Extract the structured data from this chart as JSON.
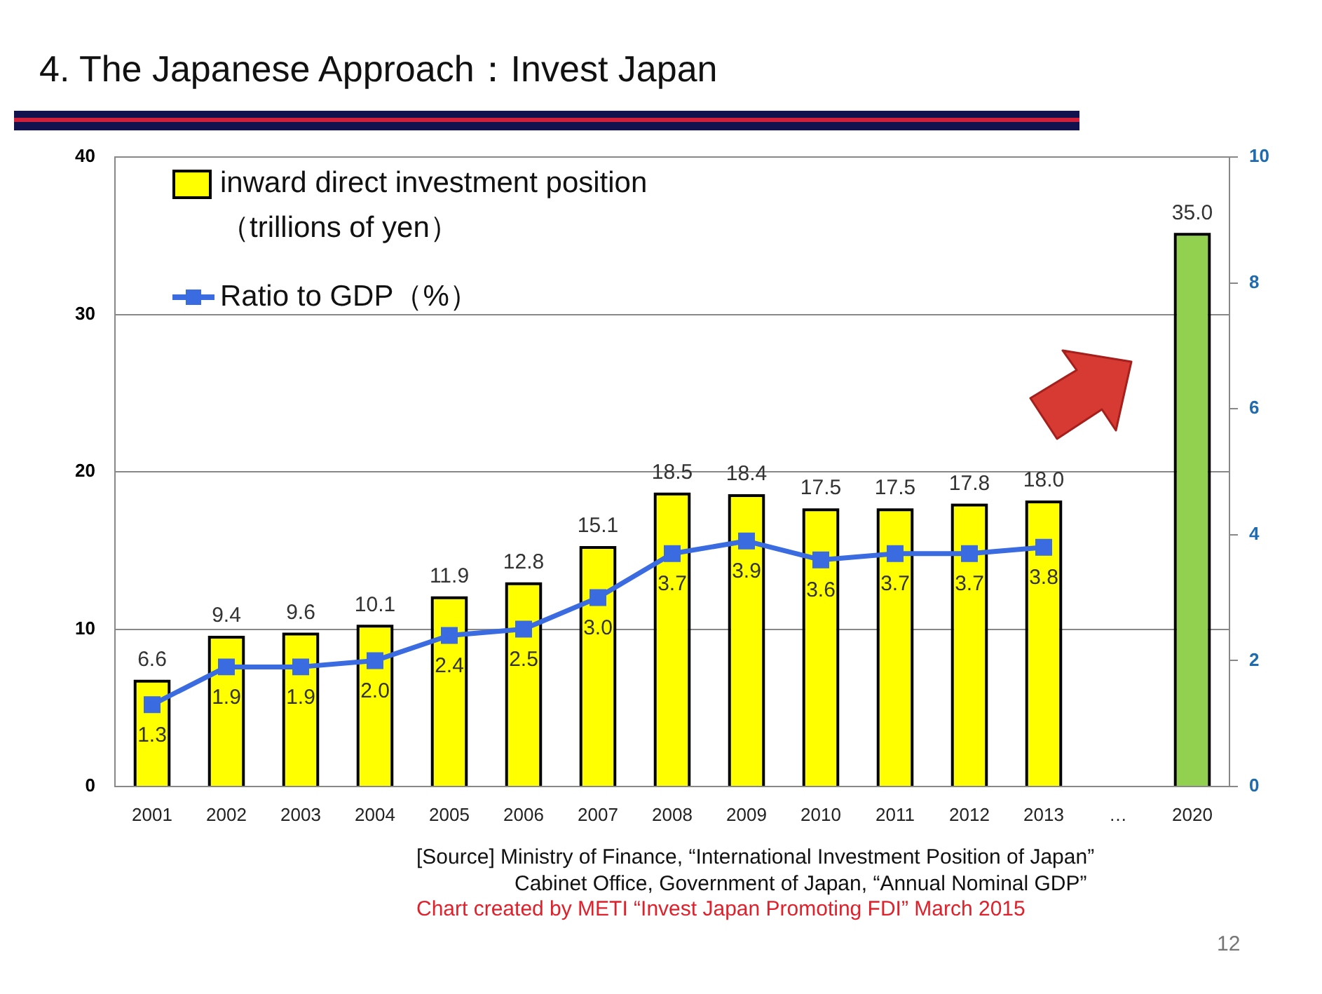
{
  "chart_data": {
    "type": "bar",
    "title": "4. The Japanese Approach：Invest Japan",
    "categories": [
      "2001",
      "2002",
      "2003",
      "2004",
      "2005",
      "2006",
      "2007",
      "2008",
      "2009",
      "2010",
      "2011",
      "2012",
      "2013",
      "…",
      "2020"
    ],
    "series": [
      {
        "name": "inward direct investment position\n（trillions of yen）",
        "colors": [
          "#ffff00",
          "#ffff00",
          "#ffff00",
          "#ffff00",
          "#ffff00",
          "#ffff00",
          "#ffff00",
          "#ffff00",
          "#ffff00",
          "#ffff00",
          "#ffff00",
          "#ffff00",
          "#ffff00",
          "#ffff00",
          "#92d050"
        ],
        "values": [
          6.6,
          9.4,
          9.6,
          10.1,
          11.9,
          12.8,
          15.1,
          18.5,
          18.4,
          17.5,
          17.5,
          17.8,
          18.0,
          null,
          35.0
        ],
        "value_labels": [
          "6.6",
          "9.4",
          "9.6",
          "10.1",
          "11.9",
          "12.8",
          "15.1",
          "18.5",
          "18.4",
          "17.5",
          "17.5",
          "17.8",
          "18.0",
          null,
          "35.0"
        ]
      },
      {
        "name": "Ratio to GDP（%）",
        "type": "line",
        "axis": "y2",
        "color": "#3a6be0",
        "values": [
          1.3,
          1.9,
          1.9,
          2.0,
          2.4,
          2.5,
          3.0,
          3.7,
          3.9,
          3.6,
          3.7,
          3.7,
          3.8,
          null,
          null
        ],
        "value_labels": [
          "1.3",
          "1.9",
          "1.9",
          "2.0",
          "2.4",
          "2.5",
          "3.0",
          "3.7",
          "3.9",
          "3.6",
          "3.7",
          "3.7",
          "3.8",
          null,
          null
        ]
      }
    ],
    "ylim": [
      0,
      40
    ],
    "yticks": [
      0,
      10,
      20,
      30,
      40
    ],
    "y2lim": [
      0,
      10
    ],
    "y2ticks": [
      0,
      2,
      4,
      6,
      8,
      10
    ],
    "grid": "y",
    "legend": "top left",
    "marker": "square",
    "annotations": [
      "[Source] Ministry of Finance, “International Investment Position of Japan”",
      "Cabinet Office, Government of Japan, “Annual Nominal GDP”",
      "Chart created by METI “Invest Japan Promoting FDI” March 2015",
      "12"
    ]
  }
}
